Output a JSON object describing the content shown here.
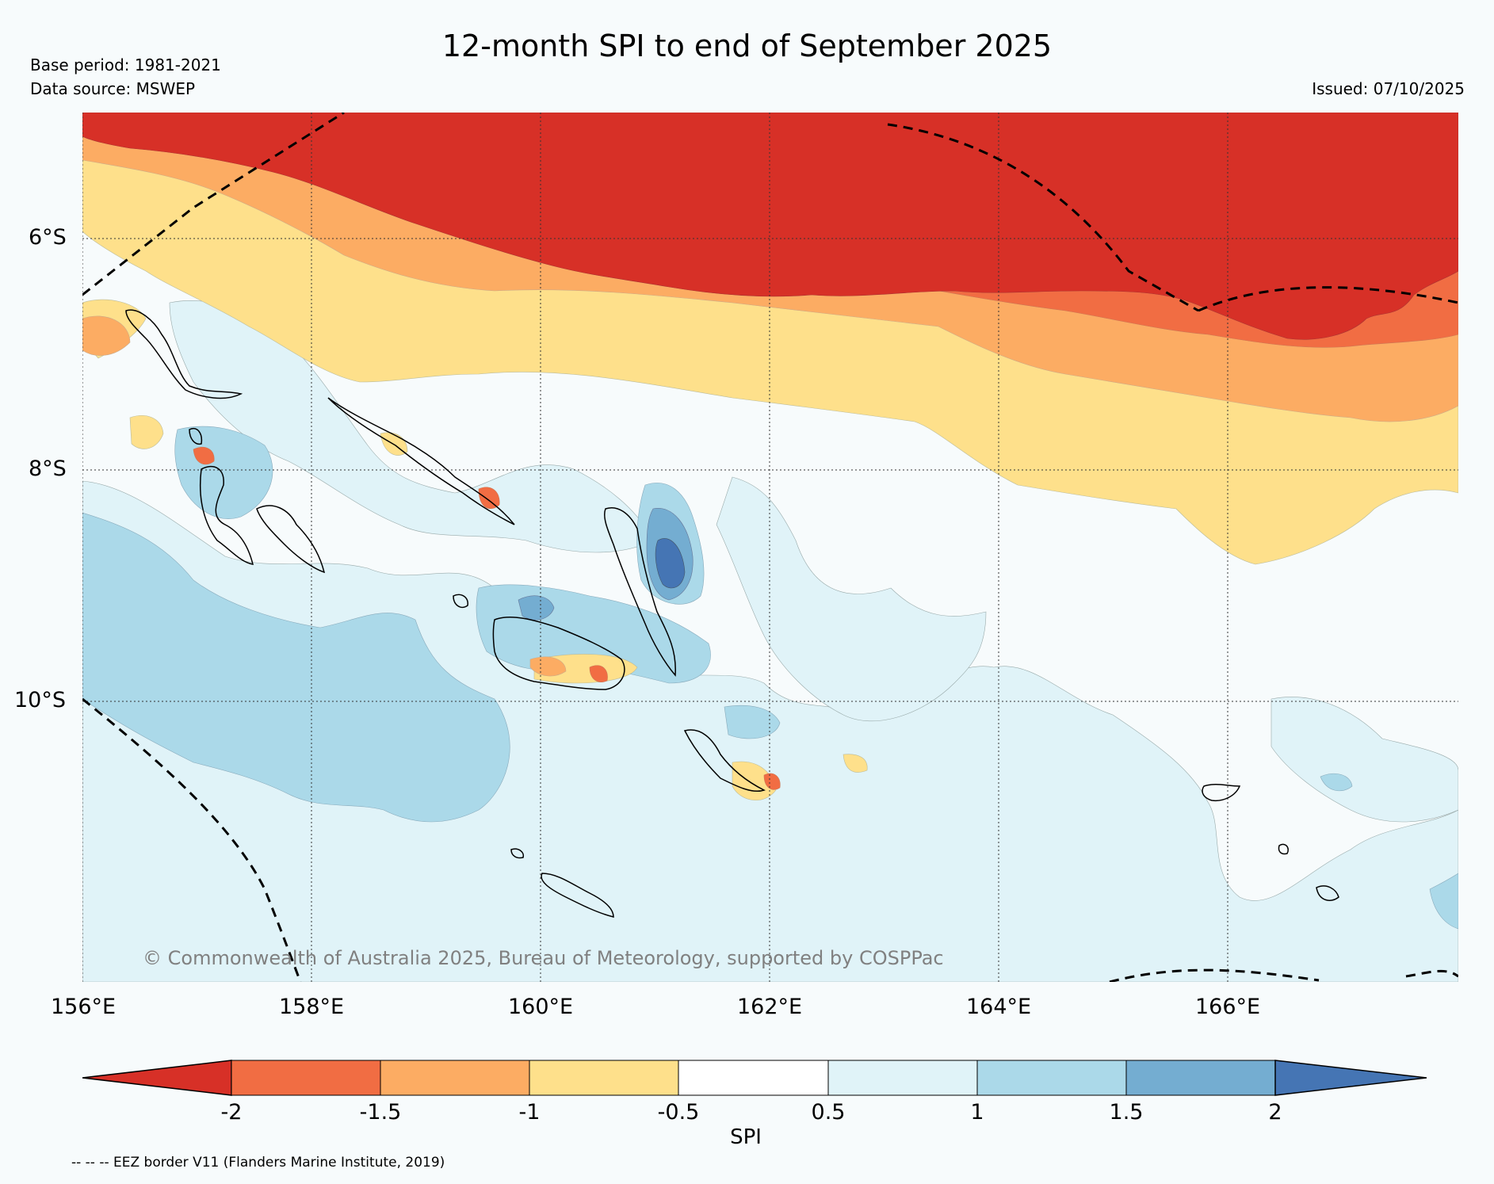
{
  "title": "12-month SPI to end of September 2025",
  "base_period": "Base period: 1981-2021",
  "data_source": "Data source: MSWEP",
  "issued": "Issued: 07/10/2025",
  "copyright": "© Commonwealth of Australia 2025, Bureau of Meteorology, supported by COSPPac",
  "map": {
    "lon_labels": [
      "156°E",
      "158°E",
      "160°E",
      "162°E",
      "164°E",
      "166°E"
    ],
    "lat_labels": [
      "6°S",
      "8°S",
      "10°S"
    ],
    "colors": {
      "very_dry": "#d73027",
      "dry_15": "#f16d43",
      "dry_1": "#fcac63",
      "dry_05": "#fee08b",
      "normal": "#f7fbfc",
      "wet_05": "#e0f3f8",
      "wet_1": "#abd9e9",
      "wet_15": "#74add1",
      "very_wet": "#4575b4"
    }
  },
  "colorbar": {
    "label": "SPI",
    "ticks": [
      "-2",
      "-1.5",
      "-1",
      "-0.5",
      "0.5",
      "1",
      "1.5",
      "2"
    ],
    "colors": [
      "#d73027",
      "#f16d43",
      "#fcac63",
      "#fee08b",
      "#ffffff",
      "#e0f3f8",
      "#abd9e9",
      "#74add1",
      "#4575b4"
    ]
  },
  "eez_note": "-- -- -- EEZ border V11 (Flanders Marine Institute, 2019)"
}
